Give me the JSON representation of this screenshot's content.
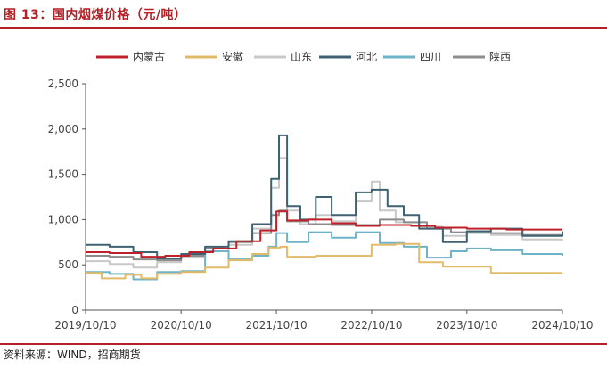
{
  "figure": {
    "title": "图 13：国内烟煤价格（元/吨）",
    "source": "资料来源：WIND，招商期货"
  },
  "chart_data": {
    "type": "line",
    "title": "",
    "xlabel": "",
    "ylabel": "",
    "ylim": [
      0,
      2500
    ],
    "yticks": [
      "0",
      "500",
      "1,000",
      "1,500",
      "2,000",
      "2,500"
    ],
    "ytick_values": [
      0,
      500,
      1000,
      1500,
      2000,
      2500
    ],
    "xlim": [
      "2019-10-10",
      "2024-10-10"
    ],
    "xticks": [
      "2019/10/10",
      "2020/10/10",
      "2021/10/10",
      "2022/10/10",
      "2023/10/10",
      "2024/10/10"
    ],
    "xtick_values": [
      "2019-10-10",
      "2020-10-10",
      "2021-10-10",
      "2022-10-10",
      "2023-10-10",
      "2024-10-10"
    ],
    "grid": false,
    "legend_position": "top",
    "series": [
      {
        "name": "内蒙古",
        "color": "#c0202a",
        "points": [
          [
            "2019-10-10",
            640
          ],
          [
            "2020-01-10",
            630
          ],
          [
            "2020-05-10",
            590
          ],
          [
            "2020-08-10",
            600
          ],
          [
            "2020-11-10",
            640
          ],
          [
            "2021-02-10",
            680
          ],
          [
            "2021-05-10",
            760
          ],
          [
            "2021-08-10",
            880
          ],
          [
            "2021-10-10",
            1090
          ],
          [
            "2021-11-20",
            990
          ],
          [
            "2022-02-10",
            1000
          ],
          [
            "2022-05-10",
            960
          ],
          [
            "2022-08-10",
            930
          ],
          [
            "2022-11-10",
            940
          ],
          [
            "2023-03-10",
            930
          ],
          [
            "2023-06-10",
            910
          ],
          [
            "2023-10-10",
            900
          ],
          [
            "2024-03-10",
            890
          ],
          [
            "2024-10-10",
            890
          ]
        ]
      },
      {
        "name": "安徽",
        "color": "#e2bb6a",
        "points": [
          [
            "2019-10-10",
            410
          ],
          [
            "2019-12-10",
            350
          ],
          [
            "2020-03-10",
            390
          ],
          [
            "2020-05-10",
            350
          ],
          [
            "2020-07-10",
            400
          ],
          [
            "2020-10-10",
            420
          ],
          [
            "2021-01-10",
            470
          ],
          [
            "2021-04-10",
            550
          ],
          [
            "2021-07-10",
            620
          ],
          [
            "2021-09-10",
            690
          ],
          [
            "2021-10-25",
            700
          ],
          [
            "2021-11-20",
            590
          ],
          [
            "2022-03-10",
            600
          ],
          [
            "2022-07-10",
            600
          ],
          [
            "2022-10-10",
            720
          ],
          [
            "2023-01-10",
            730
          ],
          [
            "2023-04-10",
            530
          ],
          [
            "2023-07-10",
            480
          ],
          [
            "2023-10-10",
            480
          ],
          [
            "2024-01-10",
            410
          ],
          [
            "2024-10-10",
            410
          ]
        ]
      },
      {
        "name": "山东",
        "color": "#c8c8c8",
        "points": [
          [
            "2019-10-10",
            540
          ],
          [
            "2020-01-10",
            510
          ],
          [
            "2020-04-10",
            470
          ],
          [
            "2020-07-10",
            530
          ],
          [
            "2020-10-10",
            580
          ],
          [
            "2021-01-10",
            650
          ],
          [
            "2021-04-10",
            720
          ],
          [
            "2021-07-10",
            900
          ],
          [
            "2021-09-20",
            1350
          ],
          [
            "2021-10-20",
            1680
          ],
          [
            "2021-11-20",
            1100
          ],
          [
            "2022-01-10",
            950
          ],
          [
            "2022-03-10",
            1050
          ],
          [
            "2022-05-10",
            980
          ],
          [
            "2022-08-10",
            1200
          ],
          [
            "2022-10-10",
            1420
          ],
          [
            "2022-11-10",
            1100
          ],
          [
            "2023-01-10",
            970
          ],
          [
            "2023-04-10",
            920
          ],
          [
            "2023-07-10",
            820
          ],
          [
            "2023-10-10",
            850
          ],
          [
            "2024-01-10",
            830
          ],
          [
            "2024-05-10",
            780
          ],
          [
            "2024-10-10",
            770
          ]
        ]
      },
      {
        "name": "河北",
        "color": "#3f6272",
        "points": [
          [
            "2019-10-10",
            720
          ],
          [
            "2020-01-10",
            700
          ],
          [
            "2020-04-10",
            640
          ],
          [
            "2020-07-10",
            570
          ],
          [
            "2020-10-10",
            620
          ],
          [
            "2021-01-10",
            700
          ],
          [
            "2021-04-10",
            760
          ],
          [
            "2021-07-10",
            950
          ],
          [
            "2021-09-20",
            1450
          ],
          [
            "2021-10-20",
            1930
          ],
          [
            "2021-11-20",
            1150
          ],
          [
            "2022-01-10",
            1000
          ],
          [
            "2022-03-10",
            1250
          ],
          [
            "2022-05-10",
            1050
          ],
          [
            "2022-08-10",
            1300
          ],
          [
            "2022-10-10",
            1330
          ],
          [
            "2022-12-10",
            1150
          ],
          [
            "2023-02-10",
            1050
          ],
          [
            "2023-04-10",
            900
          ],
          [
            "2023-07-10",
            750
          ],
          [
            "2023-10-10",
            870
          ],
          [
            "2024-01-10",
            900
          ],
          [
            "2024-05-10",
            820
          ],
          [
            "2024-10-10",
            870
          ]
        ]
      },
      {
        "name": "四川",
        "color": "#6fb3c8",
        "points": [
          [
            "2019-10-10",
            420
          ],
          [
            "2020-01-10",
            400
          ],
          [
            "2020-04-10",
            340
          ],
          [
            "2020-07-10",
            420
          ],
          [
            "2020-10-10",
            430
          ],
          [
            "2021-01-10",
            650
          ],
          [
            "2021-04-10",
            560
          ],
          [
            "2021-07-10",
            600
          ],
          [
            "2021-09-10",
            700
          ],
          [
            "2021-10-10",
            850
          ],
          [
            "2021-11-20",
            750
          ],
          [
            "2022-02-10",
            860
          ],
          [
            "2022-05-10",
            800
          ],
          [
            "2022-08-10",
            860
          ],
          [
            "2022-11-10",
            740
          ],
          [
            "2023-02-10",
            700
          ],
          [
            "2023-05-10",
            580
          ],
          [
            "2023-08-10",
            650
          ],
          [
            "2023-10-10",
            680
          ],
          [
            "2024-01-10",
            660
          ],
          [
            "2024-05-10",
            620
          ],
          [
            "2024-10-10",
            600
          ]
        ]
      },
      {
        "name": "陕西",
        "color": "#8c8c8c",
        "points": [
          [
            "2019-10-10",
            600
          ],
          [
            "2020-01-10",
            590
          ],
          [
            "2020-04-10",
            560
          ],
          [
            "2020-07-10",
            550
          ],
          [
            "2020-10-10",
            600
          ],
          [
            "2021-01-10",
            680
          ],
          [
            "2021-04-10",
            750
          ],
          [
            "2021-07-10",
            850
          ],
          [
            "2021-09-20",
            1050
          ],
          [
            "2021-10-20",
            1100
          ],
          [
            "2021-11-20",
            980
          ],
          [
            "2022-02-10",
            950
          ],
          [
            "2022-05-10",
            940
          ],
          [
            "2022-08-10",
            940
          ],
          [
            "2022-11-10",
            1000
          ],
          [
            "2023-02-10",
            970
          ],
          [
            "2023-05-10",
            900
          ],
          [
            "2023-08-10",
            860
          ],
          [
            "2023-10-10",
            870
          ],
          [
            "2024-01-10",
            850
          ],
          [
            "2024-05-10",
            830
          ],
          [
            "2024-10-10",
            830
          ]
        ]
      }
    ]
  }
}
